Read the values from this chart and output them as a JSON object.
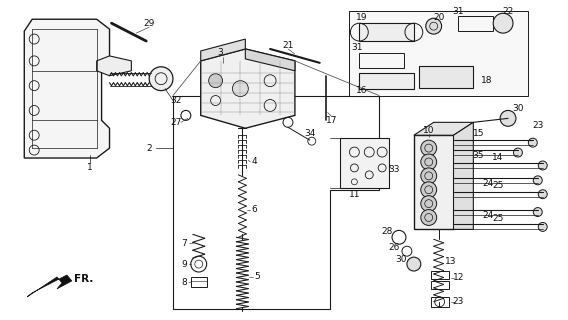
{
  "bg_color": "#ffffff",
  "fig_width": 5.68,
  "fig_height": 3.2,
  "dpi": 100,
  "line_color": "#1a1a1a",
  "label_fontsize": 6.5,
  "label_color": "#111111"
}
